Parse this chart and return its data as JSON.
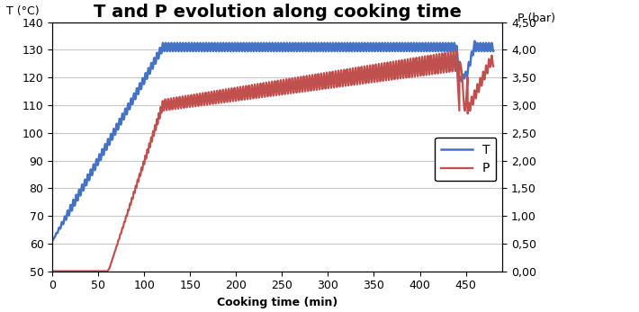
{
  "title": "T and P evolution along cooking time",
  "xlabel": "Cooking time (min)",
  "ylabel_left": "T (°C)",
  "ylabel_right": "P (bar)",
  "ylim_left": [
    50,
    140
  ],
  "ylim_right": [
    0.0,
    4.5
  ],
  "xlim": [
    0,
    490
  ],
  "yticks_left": [
    50,
    60,
    70,
    80,
    90,
    100,
    110,
    120,
    130,
    140
  ],
  "yticks_right": [
    0.0,
    0.5,
    1.0,
    1.5,
    2.0,
    2.5,
    3.0,
    3.5,
    4.0,
    4.5
  ],
  "ytick_right_labels": [
    "0,00",
    "0,50",
    "1,00",
    "1,50",
    "2,00",
    "2,50",
    "3,00",
    "3,50",
    "4,00",
    "4,50"
  ],
  "xticks": [
    0,
    50,
    100,
    150,
    200,
    250,
    300,
    350,
    400,
    450
  ],
  "color_T": "#4472C4",
  "color_P": "#C0504D",
  "legend_T": "T",
  "legend_P": "P",
  "background_color": "#FFFFFF",
  "grid_color": "#C8C8C8",
  "title_fontsize": 14,
  "axis_label_fontsize": 9,
  "tick_fontsize": 9
}
